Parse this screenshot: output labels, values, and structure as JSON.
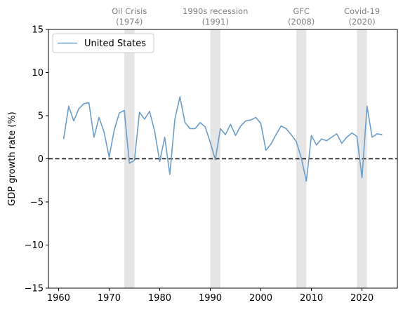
{
  "chart_data": {
    "type": "line",
    "title": "",
    "xlabel": "",
    "ylabel": "GDP growth rate (%)",
    "xlim": [
      1958,
      2027
    ],
    "ylim": [
      -15,
      15
    ],
    "xticks": [
      1960,
      1970,
      1980,
      1990,
      2000,
      2010,
      2020
    ],
    "xtick_labels": [
      "1960",
      "1970",
      "1980",
      "1990",
      "2000",
      "2010",
      "2020"
    ],
    "yticks": [
      -15,
      -10,
      -5,
      0,
      5,
      10,
      15
    ],
    "ytick_labels": [
      "−15",
      "−10",
      "−5",
      "0",
      "5",
      "10",
      "15"
    ],
    "grid": false,
    "legend": {
      "placement": "top-left",
      "entries": [
        "United States"
      ]
    },
    "zero_line": {
      "y": 0,
      "style": "dashed",
      "color": "#000000"
    },
    "colors": {
      "series": "#6b9ec9",
      "shade": "#e5e5e5",
      "event_label": "#808080"
    },
    "series": [
      {
        "name": "United States",
        "x": [
          1961,
          1962,
          1963,
          1964,
          1965,
          1966,
          1967,
          1968,
          1969,
          1970,
          1971,
          1972,
          1973,
          1974,
          1975,
          1976,
          1977,
          1978,
          1979,
          1980,
          1981,
          1982,
          1983,
          1984,
          1985,
          1986,
          1987,
          1988,
          1989,
          1990,
          1991,
          1992,
          1993,
          1994,
          1995,
          1996,
          1997,
          1998,
          1999,
          2000,
          2001,
          2002,
          2003,
          2004,
          2005,
          2006,
          2007,
          2008,
          2009,
          2010,
          2011,
          2012,
          2013,
          2014,
          2015,
          2016,
          2017,
          2018,
          2019,
          2020,
          2021,
          2022,
          2023,
          2024
        ],
        "values": [
          2.3,
          6.1,
          4.4,
          5.8,
          6.4,
          6.5,
          2.5,
          4.8,
          3.1,
          0.2,
          3.3,
          5.3,
          5.6,
          -0.5,
          -0.2,
          5.4,
          4.6,
          5.5,
          3.2,
          -0.3,
          2.5,
          -1.8,
          4.6,
          7.2,
          4.2,
          3.5,
          3.5,
          4.2,
          3.7,
          1.9,
          -0.1,
          3.5,
          2.8,
          4.0,
          2.7,
          3.8,
          4.4,
          4.5,
          4.8,
          4.1,
          1.0,
          1.7,
          2.8,
          3.8,
          3.5,
          2.8,
          2.0,
          0.1,
          -2.6,
          2.7,
          1.6,
          2.3,
          2.1,
          2.5,
          2.9,
          1.8,
          2.5,
          3.0,
          2.6,
          -2.2,
          6.1,
          2.5,
          2.9,
          2.8
        ]
      }
    ],
    "events": [
      {
        "label": "Oil Crisis",
        "year_label": "(1974)",
        "start": 1973,
        "end": 1975
      },
      {
        "label": "1990s recession",
        "year_label": "(1991)",
        "start": 1990,
        "end": 1992
      },
      {
        "label": "GFC",
        "year_label": "(2008)",
        "start": 2007,
        "end": 2009
      },
      {
        "label": "Covid-19",
        "year_label": "(2020)",
        "start": 2019,
        "end": 2021
      }
    ]
  }
}
